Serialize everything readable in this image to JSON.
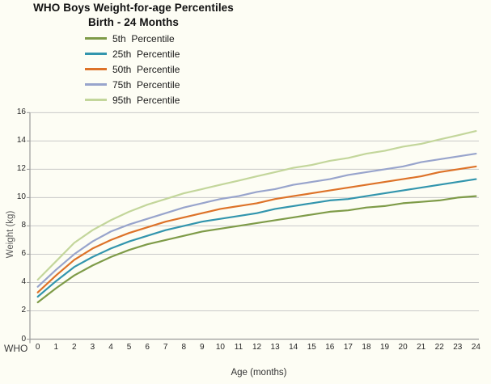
{
  "title": {
    "line1": "WHO Boys Weight-for-age Percentiles",
    "line2": "Birth - 24 Months"
  },
  "chart_data": {
    "type": "line",
    "title": "WHO Boys Weight-for-age Percentiles Birth - 24 Months",
    "xlabel": "Age (months)",
    "ylabel": "Weight (kg)",
    "x_axis_prefix": "WHO",
    "x": [
      0,
      1,
      2,
      3,
      4,
      5,
      6,
      7,
      8,
      9,
      10,
      11,
      12,
      13,
      14,
      15,
      16,
      17,
      18,
      19,
      20,
      21,
      22,
      23,
      24
    ],
    "y_ticks": [
      0,
      2,
      4,
      6,
      8,
      10,
      12,
      14,
      16
    ],
    "xlim": [
      0,
      24
    ],
    "ylim": [
      0,
      16
    ],
    "grid": true,
    "legend_position": "top",
    "series": [
      {
        "name": "5th  Percentile",
        "color": "#7E9B48",
        "values": [
          2.6,
          3.6,
          4.5,
          5.2,
          5.8,
          6.3,
          6.7,
          7.0,
          7.3,
          7.6,
          7.8,
          8.0,
          8.2,
          8.4,
          8.6,
          8.8,
          9.0,
          9.1,
          9.3,
          9.4,
          9.6,
          9.7,
          9.8,
          10.0,
          10.1
        ]
      },
      {
        "name": "25th  Percentile",
        "color": "#3295AD",
        "values": [
          3.0,
          4.1,
          5.1,
          5.8,
          6.4,
          6.9,
          7.3,
          7.7,
          8.0,
          8.3,
          8.5,
          8.7,
          8.9,
          9.2,
          9.4,
          9.6,
          9.8,
          9.9,
          10.1,
          10.3,
          10.5,
          10.7,
          10.9,
          11.1,
          11.3
        ]
      },
      {
        "name": "50th  Percentile",
        "color": "#DD7228",
        "values": [
          3.3,
          4.5,
          5.6,
          6.4,
          7.0,
          7.5,
          7.9,
          8.3,
          8.6,
          8.9,
          9.2,
          9.4,
          9.6,
          9.9,
          10.1,
          10.3,
          10.5,
          10.7,
          10.9,
          11.1,
          11.3,
          11.5,
          11.8,
          12.0,
          12.2
        ]
      },
      {
        "name": "75th  Percentile",
        "color": "#98A4CC",
        "values": [
          3.7,
          4.9,
          6.0,
          6.9,
          7.6,
          8.1,
          8.5,
          8.9,
          9.3,
          9.6,
          9.9,
          10.1,
          10.4,
          10.6,
          10.9,
          11.1,
          11.3,
          11.6,
          11.8,
          12.0,
          12.2,
          12.5,
          12.7,
          12.9,
          13.1
        ]
      },
      {
        "name": "95th  Percentile",
        "color": "#C3D69B",
        "values": [
          4.2,
          5.5,
          6.8,
          7.7,
          8.4,
          9.0,
          9.5,
          9.9,
          10.3,
          10.6,
          10.9,
          11.2,
          11.5,
          11.8,
          12.1,
          12.3,
          12.6,
          12.8,
          13.1,
          13.3,
          13.6,
          13.8,
          14.1,
          14.4,
          14.7
        ]
      }
    ]
  },
  "colors": {
    "gridline": "#C9C9C9",
    "axis": "#9B9B9B",
    "background": "#fdfdf4"
  }
}
